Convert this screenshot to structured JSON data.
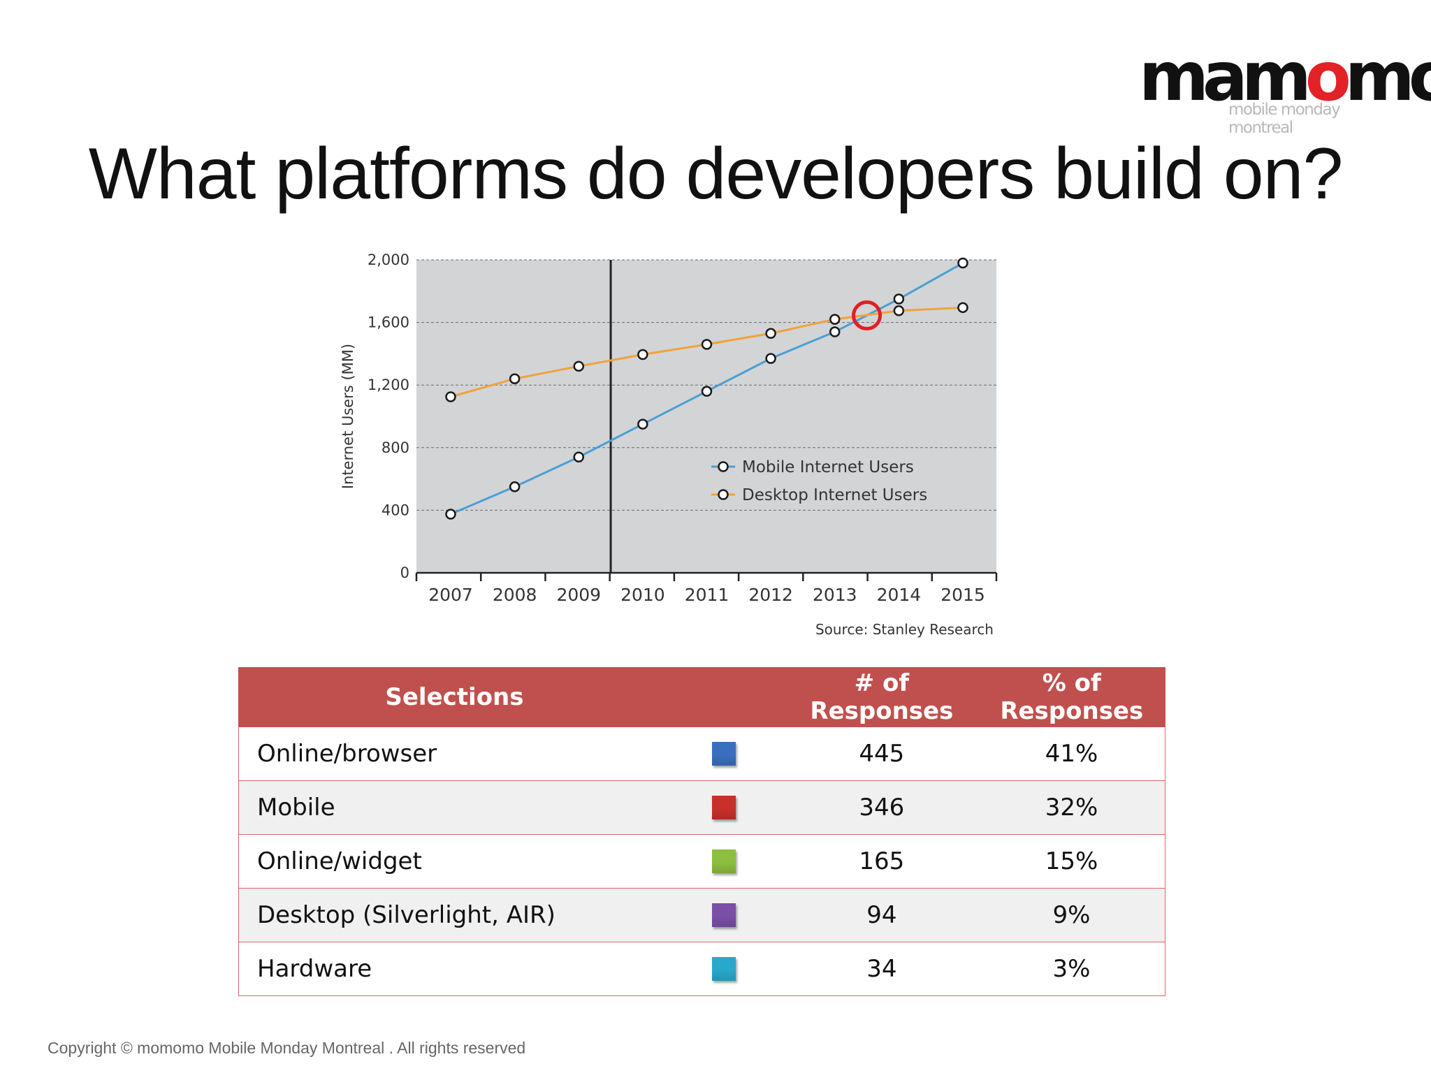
{
  "logo": {
    "word_parts": [
      "mam",
      "o",
      "mo"
    ],
    "subtitle": "mobile monday montreal",
    "accent_color": "#e32227"
  },
  "slide": {
    "title": "What platforms do developers build on?"
  },
  "chart_data": {
    "type": "line",
    "categories": [
      "2007",
      "2008",
      "2009",
      "2010",
      "2011",
      "2012",
      "2013",
      "2014",
      "2015"
    ],
    "series": [
      {
        "name": "Mobile Internet Users",
        "color": "#4a9fd5",
        "values": [
          375,
          550,
          740,
          950,
          1160,
          1370,
          1540,
          1750,
          1980
        ]
      },
      {
        "name": "Desktop Internet Users",
        "color": "#f0a23a",
        "values": [
          1125,
          1240,
          1320,
          1395,
          1460,
          1530,
          1620,
          1675,
          1695
        ]
      }
    ],
    "ylabel": "Internet Users (MM)",
    "ylim": [
      0,
      2000
    ],
    "yticks": [
      "0",
      "400",
      "800",
      "1,200",
      "1,600",
      "2,000"
    ],
    "grid": true,
    "legend_position": "center-right",
    "annotations": {
      "source": "Source: Stanley Research",
      "divider_year": "2009.5",
      "crossover_marker": {
        "x": 2013.5,
        "y": 1645,
        "color": "#e31e24"
      }
    }
  },
  "table": {
    "headers": {
      "selections": "Selections",
      "responses_count": [
        "# of",
        "Responses"
      ],
      "responses_pct": [
        "% of",
        "Responses"
      ]
    },
    "rows": [
      {
        "label": "Online/browser",
        "color": "#3a6fc0",
        "count": "445",
        "percent": "41%"
      },
      {
        "label": "Mobile",
        "color": "#c8302a",
        "count": "346",
        "percent": "32%"
      },
      {
        "label": "Online/widget",
        "color": "#8cbf3f",
        "count": "165",
        "percent": "15%"
      },
      {
        "label": "Desktop (Silverlight, AIR)",
        "color": "#7a4fa6",
        "count": "94",
        "percent": "9%"
      },
      {
        "label": "Hardware",
        "color": "#2aa7cc",
        "count": "34",
        "percent": "3%"
      }
    ]
  },
  "footer": {
    "copyright": "Copyright ©  momomo   Mobile Monday Montreal . All rights reserved"
  }
}
